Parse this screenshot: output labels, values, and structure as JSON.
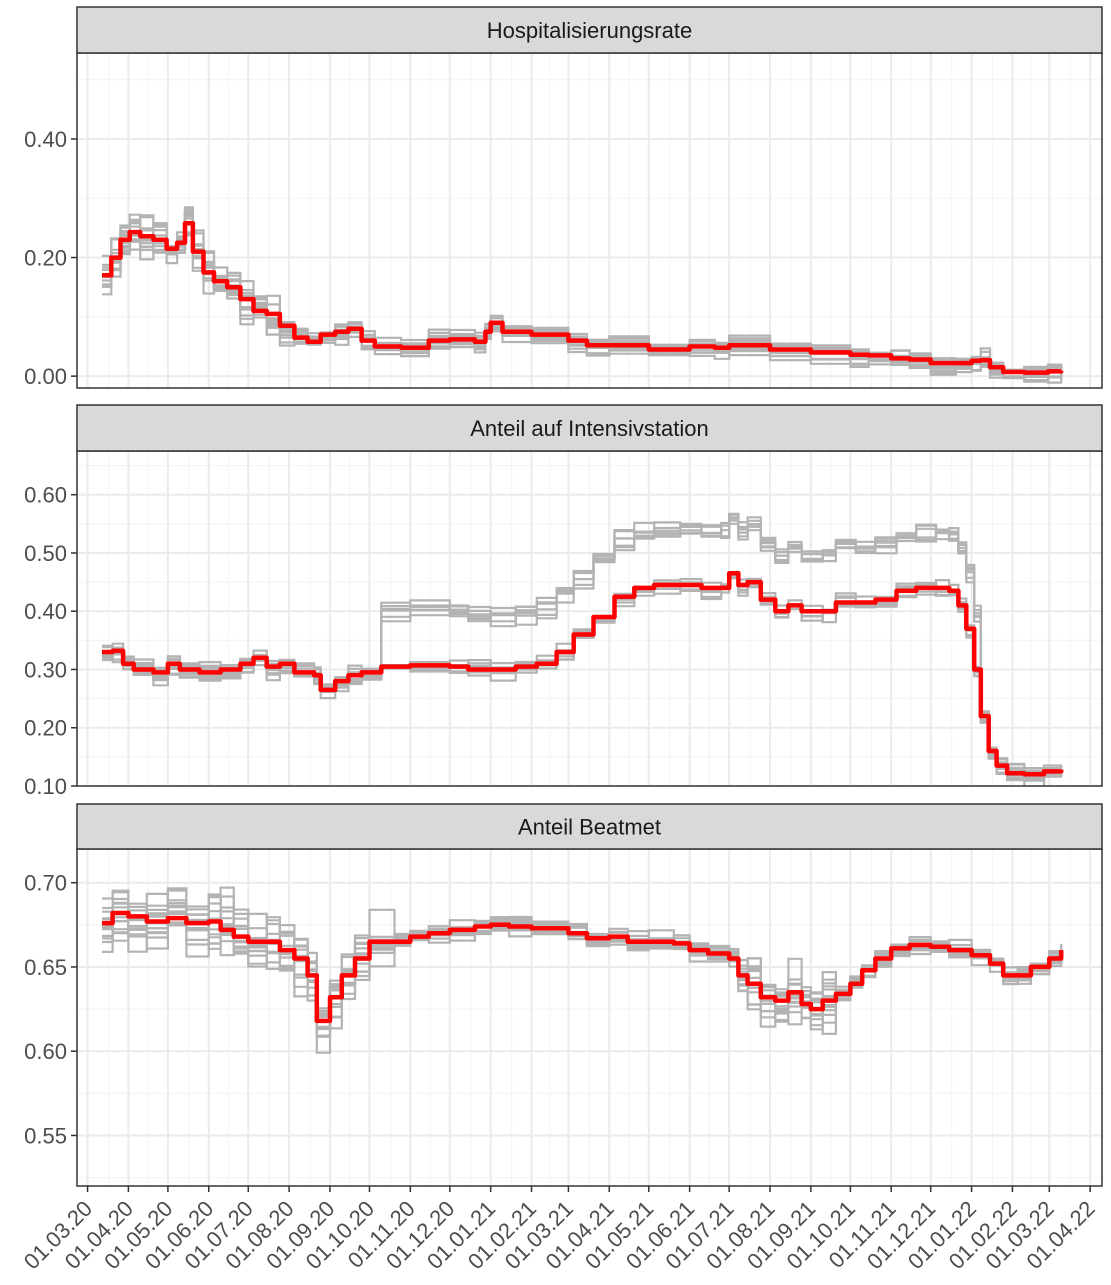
{
  "chart_data": {
    "type": "line",
    "kind": "faceted step-line chart, one panel per measure, shared date axis",
    "x_axis": {
      "type": "date",
      "range": [
        "2020-02-22",
        "2022-04-10"
      ],
      "tick_labels": [
        "01.03.20",
        "01.04.20",
        "01.05.20",
        "01.06.20",
        "01.07.20",
        "01.08.20",
        "01.09.20",
        "01.10.20",
        "01.11.20",
        "01.12.20",
        "01.01.21",
        "01.02.21",
        "01.03.21",
        "01.04.21",
        "01.05.21",
        "01.06.21",
        "01.07.21",
        "01.08.21",
        "01.09.21",
        "01.10.21",
        "01.11.21",
        "01.12.21",
        "01.01.22",
        "01.02.22",
        "01.03.22",
        "01.04.22"
      ],
      "label_rotation_deg": 45
    },
    "grid": true,
    "colors": {
      "highlight": "#ff0000",
      "background_series": "#b3b3b3",
      "strip_fill": "#d9d9d9",
      "grid": "#ebebeb"
    },
    "series_info": {
      "background_series_count": 14
    },
    "panels": [
      {
        "title": "Hospitalisierungsrate",
        "ylim": [
          -0.02,
          0.545
        ],
        "y_ticks": [
          0.0,
          0.2,
          0.4
        ],
        "y_tick_labels": [
          "0.00",
          "0.20",
          "0.40"
        ],
        "highlight_points": [
          [
            "2020-03-12",
            0.17
          ],
          [
            "2020-03-19",
            0.2
          ],
          [
            "2020-03-26",
            0.23
          ],
          [
            "2020-04-02",
            0.243
          ],
          [
            "2020-04-10",
            0.236
          ],
          [
            "2020-04-20",
            0.23
          ],
          [
            "2020-04-30",
            0.215
          ],
          [
            "2020-05-08",
            0.225
          ],
          [
            "2020-05-14",
            0.258
          ],
          [
            "2020-05-20",
            0.21
          ],
          [
            "2020-05-28",
            0.175
          ],
          [
            "2020-06-05",
            0.16
          ],
          [
            "2020-06-15",
            0.15
          ],
          [
            "2020-06-25",
            0.13
          ],
          [
            "2020-07-05",
            0.11
          ],
          [
            "2020-07-15",
            0.105
          ],
          [
            "2020-07-25",
            0.085
          ],
          [
            "2020-08-05",
            0.065
          ],
          [
            "2020-08-15",
            0.058
          ],
          [
            "2020-08-25",
            0.07
          ],
          [
            "2020-09-05",
            0.075
          ],
          [
            "2020-09-15",
            0.08
          ],
          [
            "2020-09-25",
            0.06
          ],
          [
            "2020-10-05",
            0.05
          ],
          [
            "2020-10-25",
            0.048
          ],
          [
            "2020-11-15",
            0.06
          ],
          [
            "2020-12-01",
            0.062
          ],
          [
            "2020-12-20",
            0.058
          ],
          [
            "2020-12-28",
            0.075
          ],
          [
            "2021-01-01",
            0.09
          ],
          [
            "2021-01-10",
            0.075
          ],
          [
            "2021-02-01",
            0.07
          ],
          [
            "2021-03-01",
            0.06
          ],
          [
            "2021-03-15",
            0.052
          ],
          [
            "2021-04-01",
            0.052
          ],
          [
            "2021-05-01",
            0.045
          ],
          [
            "2021-06-01",
            0.05
          ],
          [
            "2021-06-20",
            0.048
          ],
          [
            "2021-07-01",
            0.052
          ],
          [
            "2021-08-01",
            0.045
          ],
          [
            "2021-09-01",
            0.04
          ],
          [
            "2021-10-01",
            0.036
          ],
          [
            "2021-10-15",
            0.035
          ],
          [
            "2021-11-01",
            0.03
          ],
          [
            "2021-11-15",
            0.028
          ],
          [
            "2021-12-01",
            0.022
          ],
          [
            "2021-12-20",
            0.022
          ],
          [
            "2022-01-01",
            0.026
          ],
          [
            "2022-01-08",
            0.027
          ],
          [
            "2022-01-15",
            0.015
          ],
          [
            "2022-01-25",
            0.007
          ],
          [
            "2022-02-10",
            0.006
          ],
          [
            "2022-02-28",
            0.008
          ],
          [
            "2022-03-10",
            0.009
          ]
        ]
      },
      {
        "title": "Anteil auf Intensivstation",
        "ylim": [
          0.1,
          0.675
        ],
        "y_ticks": [
          0.1,
          0.2,
          0.3,
          0.4,
          0.5,
          0.6
        ],
        "y_tick_labels": [
          "0.10",
          "0.20",
          "0.30",
          "0.40",
          "0.50",
          "0.60"
        ],
        "highlight_points": [
          [
            "2020-03-12",
            0.33
          ],
          [
            "2020-03-20",
            0.332
          ],
          [
            "2020-03-28",
            0.31
          ],
          [
            "2020-04-05",
            0.3
          ],
          [
            "2020-04-20",
            0.295
          ],
          [
            "2020-05-01",
            0.31
          ],
          [
            "2020-05-10",
            0.3
          ],
          [
            "2020-05-25",
            0.295
          ],
          [
            "2020-06-10",
            0.3
          ],
          [
            "2020-06-25",
            0.31
          ],
          [
            "2020-07-05",
            0.32
          ],
          [
            "2020-07-15",
            0.305
          ],
          [
            "2020-07-25",
            0.31
          ],
          [
            "2020-08-05",
            0.295
          ],
          [
            "2020-08-20",
            0.29
          ],
          [
            "2020-08-25",
            0.265
          ],
          [
            "2020-09-05",
            0.28
          ],
          [
            "2020-09-15",
            0.29
          ],
          [
            "2020-09-25",
            0.295
          ],
          [
            "2020-10-10",
            0.305
          ],
          [
            "2020-11-01",
            0.307
          ],
          [
            "2020-12-01",
            0.305
          ],
          [
            "2020-12-15",
            0.3
          ],
          [
            "2021-01-01",
            0.3
          ],
          [
            "2021-01-20",
            0.305
          ],
          [
            "2021-02-05",
            0.31
          ],
          [
            "2021-02-20",
            0.33
          ],
          [
            "2021-03-05",
            0.36
          ],
          [
            "2021-03-20",
            0.39
          ],
          [
            "2021-04-05",
            0.425
          ],
          [
            "2021-04-20",
            0.44
          ],
          [
            "2021-05-05",
            0.445
          ],
          [
            "2021-05-25",
            0.445
          ],
          [
            "2021-06-10",
            0.44
          ],
          [
            "2021-06-25",
            0.44
          ],
          [
            "2021-07-01",
            0.465
          ],
          [
            "2021-07-08",
            0.445
          ],
          [
            "2021-07-15",
            0.45
          ],
          [
            "2021-07-25",
            0.42
          ],
          [
            "2021-08-05",
            0.4
          ],
          [
            "2021-08-15",
            0.41
          ],
          [
            "2021-08-25",
            0.4
          ],
          [
            "2021-09-10",
            0.4
          ],
          [
            "2021-09-20",
            0.415
          ],
          [
            "2021-10-05",
            0.415
          ],
          [
            "2021-10-20",
            0.42
          ],
          [
            "2021-11-05",
            0.435
          ],
          [
            "2021-11-20",
            0.44
          ],
          [
            "2021-12-05",
            0.44
          ],
          [
            "2021-12-15",
            0.435
          ],
          [
            "2021-12-22",
            0.41
          ],
          [
            "2021-12-28",
            0.37
          ],
          [
            "2022-01-03",
            0.3
          ],
          [
            "2022-01-08",
            0.22
          ],
          [
            "2022-01-14",
            0.16
          ],
          [
            "2022-01-20",
            0.135
          ],
          [
            "2022-01-28",
            0.122
          ],
          [
            "2022-02-10",
            0.12
          ],
          [
            "2022-02-25",
            0.125
          ],
          [
            "2022-03-10",
            0.128
          ]
        ]
      },
      {
        "title": "Anteil Beatmet",
        "ylim": [
          0.52,
          0.72
        ],
        "y_ticks": [
          0.55,
          0.6,
          0.65,
          0.7
        ],
        "y_tick_labels": [
          "0.55",
          "0.60",
          "0.65",
          "0.70"
        ],
        "highlight_points": [
          [
            "2020-03-12",
            0.676
          ],
          [
            "2020-03-20",
            0.682
          ],
          [
            "2020-04-01",
            0.68
          ],
          [
            "2020-04-15",
            0.677
          ],
          [
            "2020-05-01",
            0.679
          ],
          [
            "2020-05-15",
            0.676
          ],
          [
            "2020-06-01",
            0.677
          ],
          [
            "2020-06-10",
            0.672
          ],
          [
            "2020-06-20",
            0.668
          ],
          [
            "2020-07-01",
            0.665
          ],
          [
            "2020-07-15",
            0.665
          ],
          [
            "2020-07-25",
            0.66
          ],
          [
            "2020-08-05",
            0.655
          ],
          [
            "2020-08-15",
            0.645
          ],
          [
            "2020-08-22",
            0.618
          ],
          [
            "2020-09-01",
            0.632
          ],
          [
            "2020-09-10",
            0.645
          ],
          [
            "2020-09-20",
            0.655
          ],
          [
            "2020-10-01",
            0.665
          ],
          [
            "2020-10-20",
            0.665
          ],
          [
            "2020-11-01",
            0.668
          ],
          [
            "2020-11-15",
            0.67
          ],
          [
            "2020-12-01",
            0.672
          ],
          [
            "2020-12-20",
            0.674
          ],
          [
            "2021-01-01",
            0.675
          ],
          [
            "2021-01-15",
            0.674
          ],
          [
            "2021-02-01",
            0.673
          ],
          [
            "2021-03-01",
            0.67
          ],
          [
            "2021-03-15",
            0.667
          ],
          [
            "2021-04-01",
            0.668
          ],
          [
            "2021-04-15",
            0.665
          ],
          [
            "2021-05-01",
            0.665
          ],
          [
            "2021-05-20",
            0.664
          ],
          [
            "2021-06-01",
            0.66
          ],
          [
            "2021-06-15",
            0.658
          ],
          [
            "2021-07-01",
            0.655
          ],
          [
            "2021-07-08",
            0.645
          ],
          [
            "2021-07-15",
            0.64
          ],
          [
            "2021-07-25",
            0.632
          ],
          [
            "2021-08-05",
            0.63
          ],
          [
            "2021-08-15",
            0.635
          ],
          [
            "2021-08-25",
            0.628
          ],
          [
            "2021-09-01",
            0.625
          ],
          [
            "2021-09-10",
            0.63
          ],
          [
            "2021-09-20",
            0.634
          ],
          [
            "2021-10-01",
            0.64
          ],
          [
            "2021-10-10",
            0.648
          ],
          [
            "2021-10-20",
            0.655
          ],
          [
            "2021-11-01",
            0.661
          ],
          [
            "2021-11-15",
            0.663
          ],
          [
            "2021-12-01",
            0.662
          ],
          [
            "2021-12-15",
            0.66
          ],
          [
            "2022-01-01",
            0.657
          ],
          [
            "2022-01-15",
            0.652
          ],
          [
            "2022-01-25",
            0.645
          ],
          [
            "2022-02-05",
            0.645
          ],
          [
            "2022-02-15",
            0.65
          ],
          [
            "2022-03-01",
            0.655
          ],
          [
            "2022-03-10",
            0.66
          ]
        ]
      }
    ]
  }
}
